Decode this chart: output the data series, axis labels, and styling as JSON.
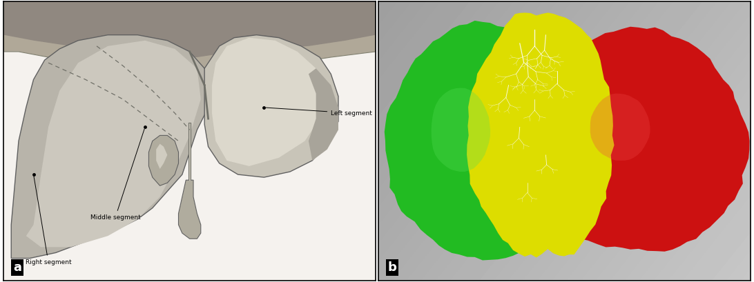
{
  "figure_width": 10.92,
  "figure_height": 4.09,
  "dpi": 100,
  "background_color": "#ffffff",
  "border_color": "#000000",
  "panel_a_label": "a",
  "panel_b_label": "b",
  "label_fontsize": 13,
  "label_color": "#ffffff",
  "label_bg": "#000000",
  "annotations": {
    "left_segment": "Left segment",
    "middle_segment": "Middle segment",
    "right_segment": "Right segment"
  },
  "annotation_fontsize": 6.5,
  "liver_colors": {
    "green": "#22bb22",
    "yellow": "#dddd00",
    "red": "#cc1111"
  },
  "panel_b_bg_left": "#b8b8bc",
  "panel_b_bg_right": "#c8c8cc",
  "panel_a_bg": "#e8e4dc",
  "panel_a_liver_main": "#c0bbb0",
  "panel_a_liver_right": "#a8a49a",
  "panel_a_liver_left": "#d0ccc0",
  "panel_a_liver_edge": "#606060"
}
